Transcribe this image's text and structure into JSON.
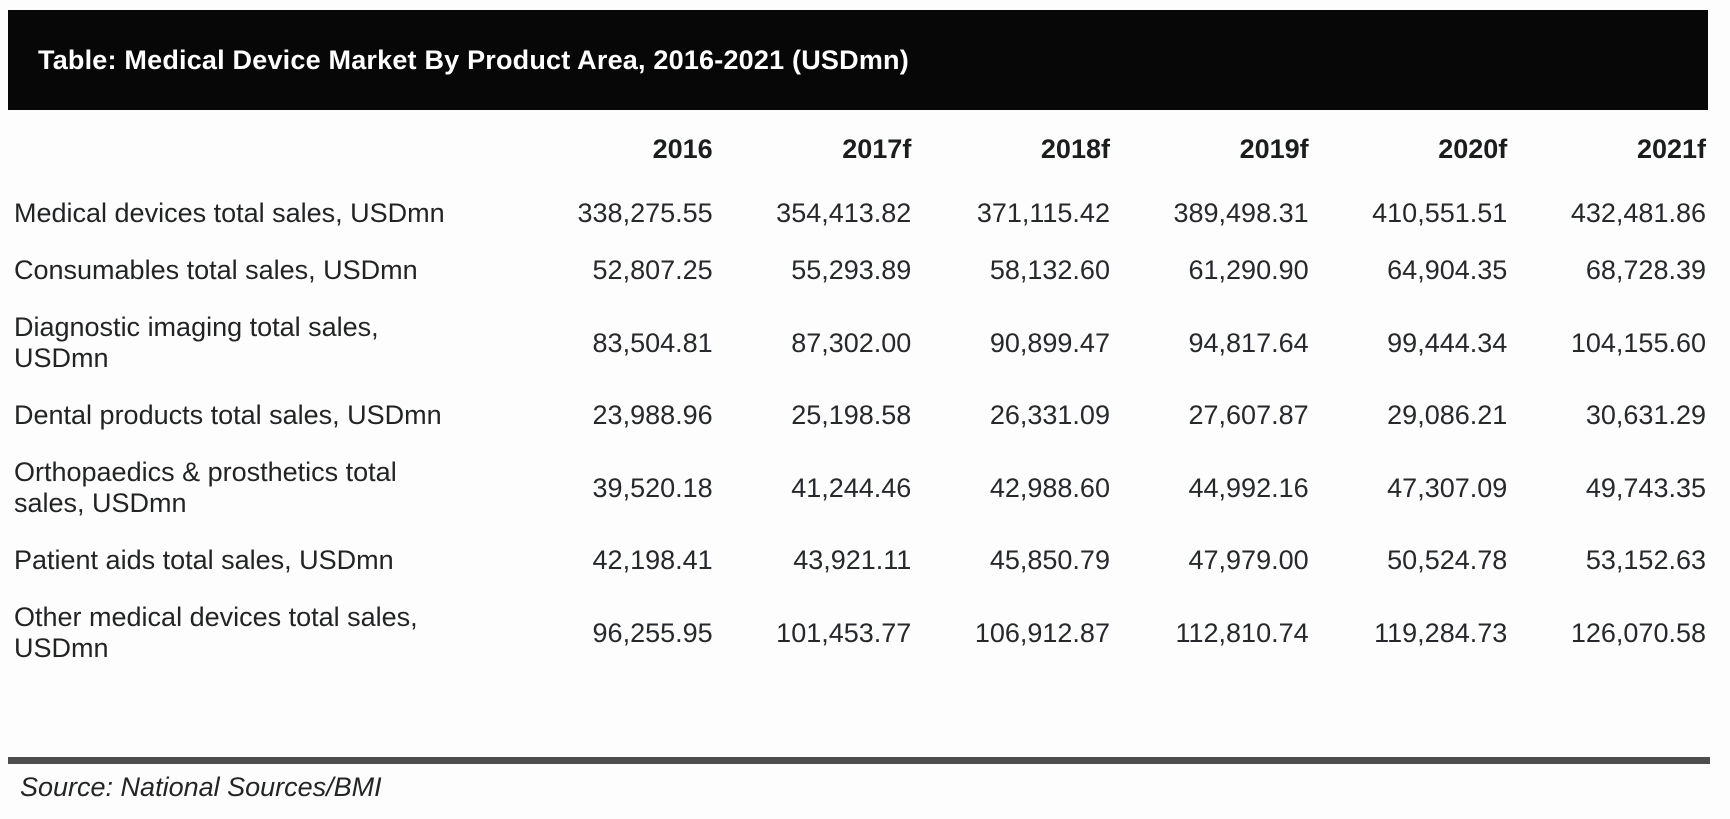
{
  "title": "Table: Medical Device Market By Product Area, 2016-2021 (USDmn)",
  "source": "Source: National Sources/BMI",
  "colors": {
    "title_bar_bg": "#070707",
    "title_text": "#ffffff",
    "body_text": "#26282c",
    "rule": "#4e4e4e"
  },
  "chart_data": {
    "type": "table",
    "title": "Table: Medical Device Market By Product Area, 2016-2021 (USDmn)",
    "columns": [
      "2016",
      "2017f",
      "2018f",
      "2019f",
      "2020f",
      "2021f"
    ],
    "rows": [
      {
        "label": "Medical devices total sales, USDmn",
        "values": [
          "338,275.55",
          "354,413.82",
          "371,115.42",
          "389,498.31",
          "410,551.51",
          "432,481.86"
        ]
      },
      {
        "label": "Consumables total sales, USDmn",
        "values": [
          "52,807.25",
          "55,293.89",
          "58,132.60",
          "61,290.90",
          "64,904.35",
          "68,728.39"
        ]
      },
      {
        "label": "Diagnostic imaging total sales,\nUSDmn",
        "values": [
          "83,504.81",
          "87,302.00",
          "90,899.47",
          "94,817.64",
          "99,444.34",
          "104,155.60"
        ]
      },
      {
        "label": "Dental products total sales, USDmn",
        "values": [
          "23,988.96",
          "25,198.58",
          "26,331.09",
          "27,607.87",
          "29,086.21",
          "30,631.29"
        ]
      },
      {
        "label": "Orthopaedics & prosthetics total\nsales, USDmn",
        "values": [
          "39,520.18",
          "41,244.46",
          "42,988.60",
          "44,992.16",
          "47,307.09",
          "49,743.35"
        ]
      },
      {
        "label": "Patient aids total sales, USDmn",
        "values": [
          "42,198.41",
          "43,921.11",
          "45,850.79",
          "47,979.00",
          "50,524.78",
          "53,152.63"
        ]
      },
      {
        "label": "Other medical devices total sales,\nUSDmn",
        "values": [
          "96,255.95",
          "101,453.77",
          "106,912.87",
          "112,810.74",
          "119,284.73",
          "126,070.58"
        ]
      }
    ],
    "source": "Source: National Sources/BMI"
  }
}
